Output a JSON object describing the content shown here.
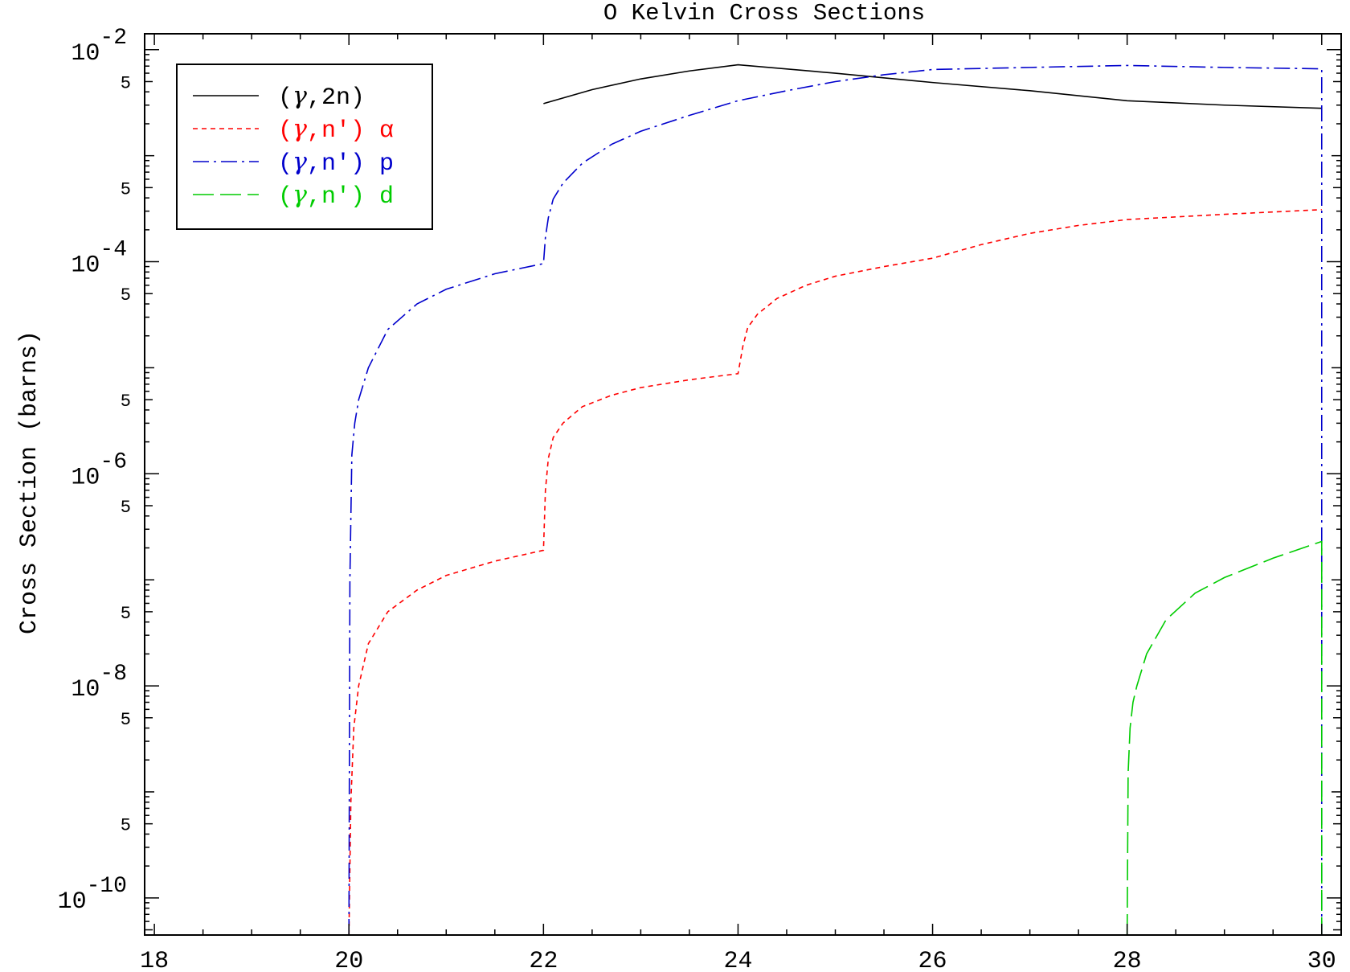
{
  "chart_data": {
    "type": "line",
    "title": "O Kelvin Cross Sections",
    "xlabel": "",
    "ylabel": "Cross Section (barns)",
    "xlim": [
      17.9,
      30.2
    ],
    "ylim_log10": [
      -10.35,
      -1.85
    ],
    "yscale": "log",
    "grid": false,
    "legend_position": "top-left",
    "x_major_ticks": [
      18,
      20,
      22,
      24,
      26,
      28,
      30
    ],
    "x_tick_labels": [
      "18",
      "20",
      "22",
      "24",
      "26",
      "28",
      "30"
    ],
    "y_decade_labels": [
      {
        "exp": -2,
        "base": "10",
        "power": "-2"
      },
      {
        "exp": -4,
        "base": "10",
        "power": "-4"
      },
      {
        "exp": -6,
        "base": "10",
        "power": "-6"
      },
      {
        "exp": -8,
        "base": "10",
        "power": "-8"
      },
      {
        "exp": -10,
        "base": "10",
        "power": "-10"
      }
    ],
    "y_half_decade_labels": [
      {
        "value": 0.005,
        "label": "5"
      },
      {
        "value": 0.0005,
        "label": "5"
      },
      {
        "value": 5e-05,
        "label": "5"
      },
      {
        "value": 5e-06,
        "label": "5"
      },
      {
        "value": 5e-07,
        "label": "5"
      },
      {
        "value": 5e-08,
        "label": "5"
      },
      {
        "value": 5e-09,
        "label": "5"
      },
      {
        "value": 5e-10,
        "label": "5"
      }
    ],
    "series": [
      {
        "name": "(γ,2n)",
        "legend_plain": "(",
        "legend_symbol": "γ",
        "legend_rest": ",2n)",
        "color": "#000000",
        "dash": "none",
        "x": [
          22.0,
          22.5,
          23.0,
          23.5,
          24.0,
          25.0,
          26.0,
          27.0,
          28.0,
          29.0,
          30.0
        ],
        "y": [
          0.0031,
          0.0042,
          0.0053,
          0.0063,
          0.0072,
          0.006,
          0.0049,
          0.0041,
          0.0033,
          0.003,
          0.0028
        ]
      },
      {
        "name": "(γ,n') α",
        "legend_plain": "(",
        "legend_symbol": "γ",
        "legend_rest": ",n') α",
        "color": "#ff0000",
        "dash": "6,5",
        "x": [
          20.0,
          20.02,
          20.05,
          20.1,
          20.2,
          20.4,
          20.7,
          21.0,
          21.5,
          22.0,
          22.02,
          22.05,
          22.1,
          22.2,
          22.4,
          22.7,
          23.0,
          23.5,
          24.0,
          24.05,
          24.1,
          24.2,
          24.4,
          24.7,
          25.0,
          25.5,
          26.0,
          26.5,
          27.0,
          27.5,
          28.0,
          29.0,
          30.0
        ],
        "y": [
          4e-11,
          8e-10,
          4e-09,
          1e-08,
          2.5e-08,
          5e-08,
          8e-08,
          1.1e-07,
          1.5e-07,
          1.9e-07,
          7e-07,
          1.4e-06,
          2.2e-06,
          3e-06,
          4.3e-06,
          5.5e-06,
          6.5e-06,
          7.7e-06,
          8.8e-06,
          1.6e-05,
          2.4e-05,
          3.2e-05,
          4.5e-05,
          6e-05,
          7.3e-05,
          9e-05,
          0.000108,
          0.000145,
          0.000185,
          0.00022,
          0.00025,
          0.00028,
          0.00031
        ]
      },
      {
        "name": "(γ,n') p",
        "legend_plain": "(",
        "legend_symbol": "γ",
        "legend_rest": ",n') p",
        "color": "#0000cc",
        "dash": "20,6,3,6",
        "x": [
          20.0,
          20.01,
          20.03,
          20.06,
          20.1,
          20.2,
          20.4,
          20.7,
          21.0,
          21.5,
          22.0,
          22.02,
          22.05,
          22.1,
          22.2,
          22.4,
          22.7,
          23.0,
          23.5,
          24.0,
          24.5,
          25.0,
          25.5,
          26.0,
          27.0,
          28.0,
          29.0,
          30.0,
          30.0
        ],
        "y": [
          4e-11,
          1e-07,
          1.5e-06,
          3e-06,
          5e-06,
          1e-05,
          2.3e-05,
          4e-05,
          5.5e-05,
          7.7e-05,
          9.6e-05,
          0.00017,
          0.00026,
          0.00039,
          0.00055,
          0.00085,
          0.00128,
          0.0017,
          0.0024,
          0.0033,
          0.0041,
          0.005,
          0.0058,
          0.0065,
          0.0068,
          0.0071,
          0.0068,
          0.0066,
          4e-11
        ]
      },
      {
        "name": "(γ,n') d",
        "legend_plain": "(",
        "legend_symbol": "γ",
        "legend_rest": ",n') d",
        "color": "#00cc00",
        "dash": "26,8",
        "x": [
          28.0,
          28.01,
          28.03,
          28.06,
          28.1,
          28.2,
          28.4,
          28.7,
          29.0,
          29.5,
          30.0,
          30.0
        ],
        "y": [
          4e-11,
          1.5e-09,
          4e-09,
          7e-09,
          1e-08,
          2e-08,
          4.2e-08,
          7.5e-08,
          1.05e-07,
          1.6e-07,
          2.3e-07,
          4e-11
        ]
      }
    ]
  }
}
